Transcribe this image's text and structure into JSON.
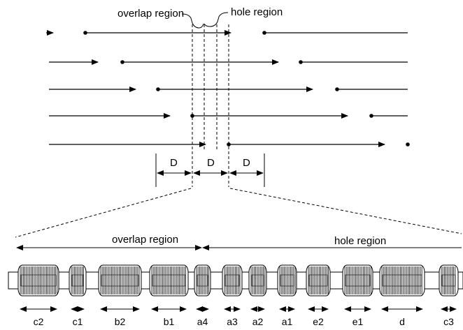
{
  "labels": {
    "overlap_top": "overlap region",
    "hole_top": "hole region",
    "overlap_bottom": "overlap region",
    "hole_bottom": "hole region"
  },
  "dimension_labels": [
    "D",
    "D",
    "D"
  ],
  "coil_labels": [
    "c2",
    "c1",
    "b2",
    "b1",
    "a4",
    "a3",
    "a2",
    "a1",
    "e2",
    "e1",
    "d",
    "c3"
  ]
}
